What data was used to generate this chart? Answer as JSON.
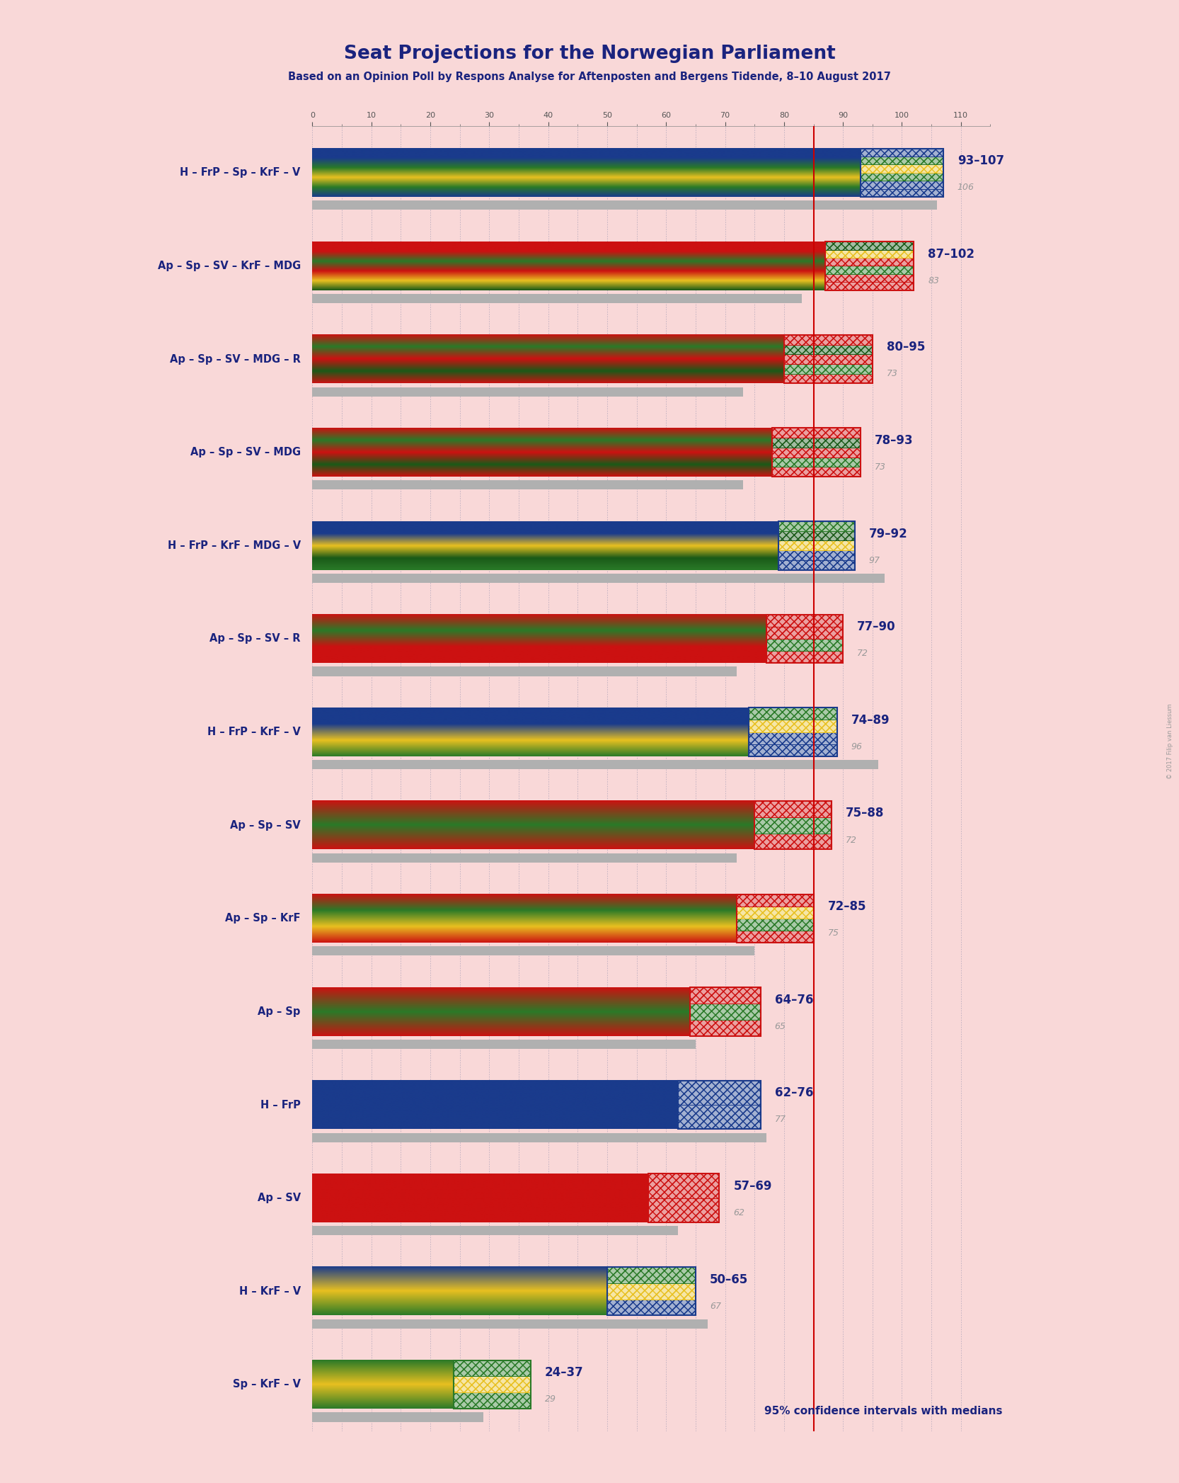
{
  "title": "Seat Projections for the Norwegian Parliament",
  "subtitle": "Based on an Opinion Poll by Respons Analyse for Aftenposten and Bergens Tidende, 8–10 August 2017",
  "background_color": "#F9D8D8",
  "majority_line": 85,
  "note": "95% confidence intervals with medians",
  "copyright": "© 2017 Filip van Liessum",
  "coalitions": [
    {
      "name": "H – FrP – Sp – KrF – V",
      "range_low": 93,
      "range_high": 107,
      "median": 106,
      "type": "right",
      "stripe_colors": [
        "#1A3B8C",
        "#1A3B8C",
        "#2A7A28",
        "#E8C020",
        "#2A7A28",
        "#1A3B8C"
      ]
    },
    {
      "name": "Ap – Sp – SV – KrF – MDG",
      "range_low": 87,
      "range_high": 102,
      "median": 83,
      "type": "left",
      "stripe_colors": [
        "#CC1111",
        "#CC1111",
        "#2A7A28",
        "#CC1111",
        "#E8C020",
        "#1A5A18"
      ]
    },
    {
      "name": "Ap – Sp – SV – MDG – R",
      "range_low": 80,
      "range_high": 95,
      "median": 73,
      "type": "left",
      "stripe_colors": [
        "#CC1111",
        "#2A7A28",
        "#CC1111",
        "#1A5A18",
        "#CC1111"
      ]
    },
    {
      "name": "Ap – Sp – SV – MDG",
      "range_low": 78,
      "range_high": 93,
      "median": 73,
      "type": "left",
      "stripe_colors": [
        "#CC1111",
        "#2A7A28",
        "#CC1111",
        "#1A5A18",
        "#CC1111"
      ]
    },
    {
      "name": "H – FrP – KrF – MDG – V",
      "range_low": 79,
      "range_high": 92,
      "median": 97,
      "type": "right",
      "stripe_colors": [
        "#1A3B8C",
        "#1A3B8C",
        "#E8C020",
        "#1A5A18",
        "#2A7A28"
      ]
    },
    {
      "name": "Ap – Sp – SV – R",
      "range_low": 77,
      "range_high": 90,
      "median": 72,
      "type": "left",
      "stripe_colors": [
        "#CC1111",
        "#2A7A28",
        "#CC1111",
        "#CC1111"
      ]
    },
    {
      "name": "H – FrP – KrF – V",
      "range_low": 74,
      "range_high": 89,
      "median": 96,
      "type": "right",
      "stripe_colors": [
        "#1A3B8C",
        "#1A3B8C",
        "#E8C020",
        "#2A7A28"
      ]
    },
    {
      "name": "Ap – Sp – SV",
      "range_low": 75,
      "range_high": 88,
      "median": 72,
      "type": "left",
      "stripe_colors": [
        "#CC1111",
        "#2A7A28",
        "#CC1111"
      ]
    },
    {
      "name": "Ap – Sp – KrF",
      "range_low": 72,
      "range_high": 85,
      "median": 75,
      "type": "left",
      "stripe_colors": [
        "#CC1111",
        "#2A7A28",
        "#E8C020",
        "#CC1111"
      ]
    },
    {
      "name": "Ap – Sp",
      "range_low": 64,
      "range_high": 76,
      "median": 65,
      "type": "left",
      "stripe_colors": [
        "#CC1111",
        "#2A7A28",
        "#CC1111"
      ]
    },
    {
      "name": "H – FrP",
      "range_low": 62,
      "range_high": 76,
      "median": 77,
      "type": "right",
      "stripe_colors": [
        "#1A3B8C",
        "#1A3B8C"
      ]
    },
    {
      "name": "Ap – SV",
      "range_low": 57,
      "range_high": 69,
      "median": 62,
      "type": "left",
      "stripe_colors": [
        "#CC1111",
        "#CC1111"
      ]
    },
    {
      "name": "H – KrF – V",
      "range_low": 50,
      "range_high": 65,
      "median": 67,
      "type": "right",
      "stripe_colors": [
        "#1A3B8C",
        "#E8C020",
        "#2A7A28"
      ]
    },
    {
      "name": "Sp – KrF – V",
      "range_low": 24,
      "range_high": 37,
      "median": 29,
      "type": "mixed",
      "stripe_colors": [
        "#2A7A28",
        "#E8C020",
        "#2A7A28"
      ]
    }
  ]
}
